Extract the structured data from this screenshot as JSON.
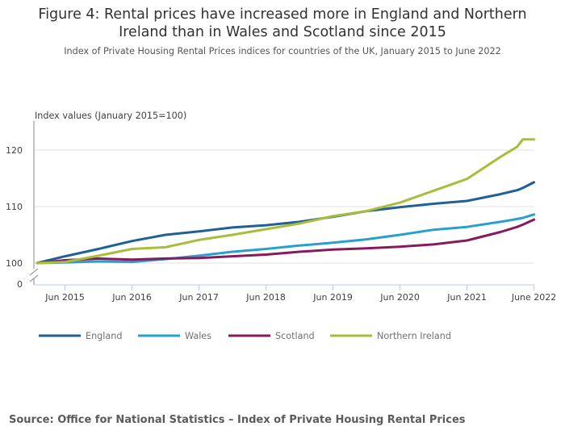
{
  "title": "Figure 4: Rental prices have increased more in England and Northern Ireland than in Wales and Scotland since 2015",
  "title_lines": [
    "Figure 4: Rental prices have increased more in England and Northern",
    "Ireland than in Wales and Scotland since 2015"
  ],
  "subtitle": "Index of Private Housing Rental Prices indices for countries of the UK, January 2015 to June 2022",
  "source": "Source: Office for National Statistics – Index of Private Housing Rental Prices",
  "chart_data": {
    "type": "line",
    "title": "Figure 4: Rental prices have increased more in England and Northern Ireland than in Wales and Scotland since 2015",
    "subtitle": "Index of Private Housing Rental Prices indices for countries of the UK, January 2015 to June 2022",
    "ylabel": "Index values (January 2015=100)",
    "xlabel": "",
    "ylim": [
      100,
      124
    ],
    "y_axis_break": true,
    "y_ticks": [
      0,
      100,
      110,
      120
    ],
    "x_start": "January 2015",
    "x_end": "June 2022",
    "x_ticks": [
      {
        "label": "Jun 2015",
        "month_index": 5
      },
      {
        "label": "Jun 2016",
        "month_index": 17
      },
      {
        "label": "Jun 2017",
        "month_index": 29
      },
      {
        "label": "Jun 2018",
        "month_index": 41
      },
      {
        "label": "Jun 2019",
        "month_index": 53
      },
      {
        "label": "Jun 2020",
        "month_index": 65
      },
      {
        "label": "Jun 2021",
        "month_index": 77
      },
      {
        "label": "June 2022",
        "month_index": 89
      }
    ],
    "grid": true,
    "legend_position": "bottom-left",
    "anchor_months": [
      0,
      5,
      11,
      17,
      23,
      29,
      35,
      41,
      47,
      53,
      59,
      65,
      71,
      77,
      83,
      86,
      87,
      89
    ],
    "series": [
      {
        "name": "England",
        "color": "#206095",
        "values": [
          100.0,
          101.2,
          102.5,
          103.9,
          105.0,
          105.6,
          106.3,
          106.7,
          107.3,
          108.2,
          109.2,
          109.9,
          110.5,
          111.0,
          112.2,
          112.9,
          113.3,
          114.3
        ]
      },
      {
        "name": "Wales",
        "color": "#27a0cc",
        "values": [
          100.0,
          100.1,
          100.3,
          100.2,
          100.7,
          101.3,
          102.0,
          102.5,
          103.1,
          103.6,
          104.2,
          105.0,
          105.9,
          106.4,
          107.3,
          107.8,
          108.0,
          108.6
        ]
      },
      {
        "name": "Scotland",
        "color": "#871a5b",
        "values": [
          100.0,
          100.5,
          100.8,
          100.6,
          100.8,
          100.9,
          101.2,
          101.5,
          102.0,
          102.4,
          102.6,
          102.9,
          103.3,
          104.0,
          105.5,
          106.4,
          106.8,
          107.7
        ]
      },
      {
        "name": "Northern Ireland",
        "color": "#a8bd3a",
        "values": [
          100.0,
          100.2,
          101.3,
          102.5,
          102.8,
          104.1,
          105.0,
          106.0,
          107.0,
          108.3,
          109.2,
          110.7,
          112.8,
          114.9,
          118.8,
          120.6,
          121.9,
          121.9
        ]
      }
    ]
  }
}
